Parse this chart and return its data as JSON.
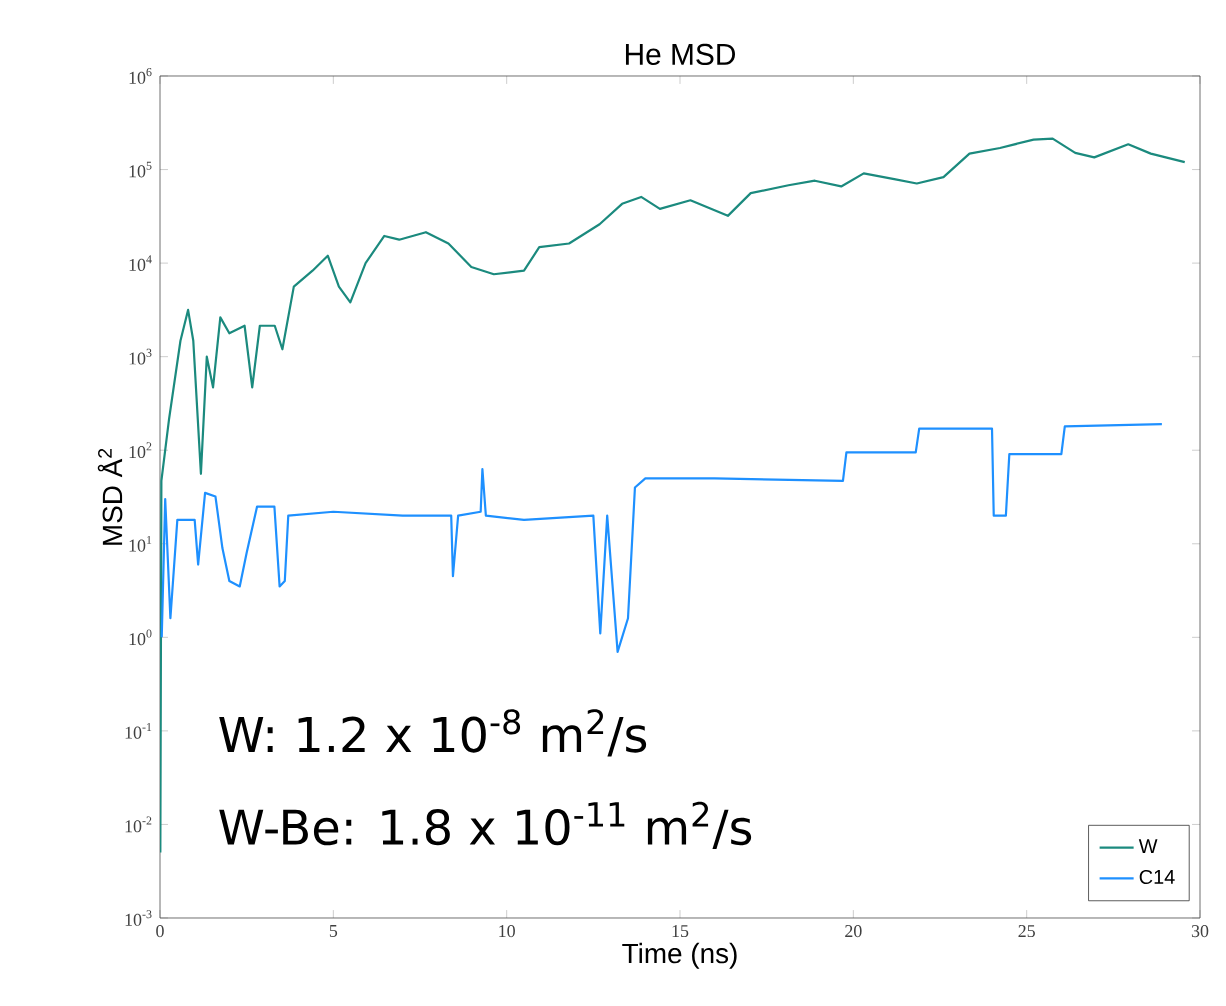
{
  "chart_data": {
    "type": "line",
    "title": "He MSD",
    "xlabel": "Time (ns)",
    "ylabel": "MSD Å$^{2}$",
    "log": "y",
    "xlim": [
      0,
      30
    ],
    "ylim": [
      0.001,
      1000000
    ],
    "xticks": [
      0,
      5,
      10,
      15,
      20,
      25,
      30
    ],
    "yticks": [
      {
        "value": 0.001,
        "label": "10$^{-3}$"
      },
      {
        "value": 0.01,
        "label": "10$^{-2}$"
      },
      {
        "value": 0.1,
        "label": "10$^{-1}$"
      },
      {
        "value": 1,
        "label": "10$^{0}$"
      },
      {
        "value": 10,
        "label": "10$^{1}$"
      },
      {
        "value": 100,
        "label": "10$^{2}$"
      },
      {
        "value": 1000,
        "label": "10$^{3}$"
      },
      {
        "value": 10000,
        "label": "10$^{4}$"
      },
      {
        "value": 100000,
        "label": "10$^{5}$"
      },
      {
        "value": 1000000,
        "label": "10$^{6}$"
      }
    ],
    "grid": false,
    "legend": "bottom right",
    "annotations": [
      "W: 1.2 x 10$^{-8}$ m$^{2}$/s",
      "W-Be: 1.8 x 10$^{-11}$ m$^{2}$/s"
    ],
    "series": [
      {
        "name": "W",
        "color": "#1b8a7e",
        "x": [
          0.01,
          0.04,
          0.26,
          0.59,
          0.81,
          0.96,
          1.18,
          1.35,
          1.53,
          1.74,
          2.0,
          2.44,
          2.66,
          2.88,
          3.31,
          3.53,
          3.86,
          4.4,
          4.84,
          5.16,
          5.49,
          5.93,
          6.47,
          6.9,
          7.67,
          8.32,
          8.98,
          9.63,
          10.5,
          10.94,
          11.8,
          12.68,
          13.33,
          13.88,
          14.42,
          15.3,
          16.38,
          17.04,
          18.13,
          18.89,
          19.65,
          20.3,
          21.18,
          21.83,
          22.6,
          23.35,
          24.23,
          25.2,
          25.75,
          26.4,
          26.95,
          27.93,
          28.58,
          29.56
        ],
        "values": [
          0.005,
          47,
          214,
          1480,
          3160,
          1480,
          56,
          1000,
          470,
          2630,
          1780,
          2140,
          470,
          2140,
          2140,
          1200,
          5600,
          8300,
          12000,
          5600,
          3800,
          10000,
          19500,
          17800,
          21400,
          16200,
          9100,
          7600,
          8300,
          14800,
          16200,
          26000,
          43000,
          51000,
          38000,
          47000,
          32000,
          56000,
          68000,
          76000,
          66000,
          91000,
          79000,
          71000,
          83000,
          148000,
          170000,
          209000,
          214000,
          151000,
          135000,
          186000,
          148000,
          120000
        ]
      },
      {
        "name": "C14",
        "color": "#1e90ff",
        "x": [
          0.05,
          0.15,
          0.3,
          0.5,
          1.0,
          1.1,
          1.3,
          1.6,
          1.8,
          2.0,
          2.3,
          2.5,
          2.8,
          3.3,
          3.45,
          3.6,
          3.7,
          5,
          7,
          8.4,
          8.45,
          8.6,
          9.25,
          9.3,
          9.4,
          10.5,
          12.5,
          12.7,
          12.9,
          13.2,
          13.5,
          13.7,
          14.0,
          16,
          19.7,
          19.8,
          21.8,
          21.9,
          24.0,
          24.05,
          24.4,
          24.5,
          26.0,
          26.1,
          28.9
        ],
        "values": [
          1.0,
          30,
          1.6,
          18,
          18,
          6,
          35,
          32,
          9,
          4,
          3.5,
          8,
          25,
          25,
          3.5,
          4,
          20,
          22,
          20,
          20,
          4.5,
          20,
          22,
          63,
          20,
          18,
          20,
          1.1,
          20,
          0.7,
          1.6,
          40,
          50,
          50,
          47,
          95,
          95,
          170,
          170,
          20,
          20,
          91,
          91,
          180,
          190
        ]
      }
    ]
  }
}
